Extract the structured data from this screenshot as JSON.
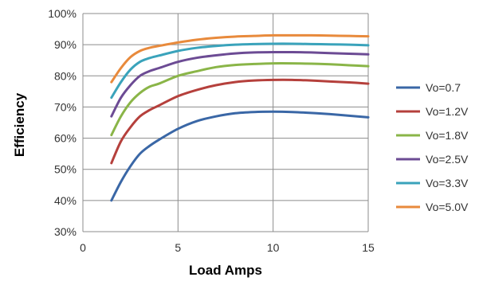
{
  "chart_data": {
    "type": "line",
    "title": "",
    "xlabel": "Load Amps",
    "ylabel": "Efficiency",
    "xlim": [
      0,
      15
    ],
    "ylim": [
      30,
      100
    ],
    "x_ticks": [
      0,
      5,
      10,
      15
    ],
    "y_ticks": [
      30,
      40,
      50,
      60,
      70,
      80,
      90,
      100
    ],
    "y_tick_labels": [
      "30%",
      "40%",
      "50%",
      "60%",
      "70%",
      "80%",
      "90%",
      "100%"
    ],
    "grid": true,
    "legend_position": "right",
    "x": [
      1.5,
      2,
      2.5,
      3,
      3.5,
      4,
      5,
      6,
      7,
      8,
      9,
      10,
      11,
      12,
      13,
      14,
      15
    ],
    "series": [
      {
        "name": "Vo=0.7",
        "color": "#3a67a6",
        "values": [
          40,
          46,
          51,
          55,
          57.5,
          59.5,
          63,
          65.5,
          67,
          68,
          68.4,
          68.5,
          68.4,
          68.1,
          67.7,
          67.2,
          66.7
        ]
      },
      {
        "name": "Vo=1.2V",
        "color": "#b5403c",
        "values": [
          52,
          59,
          63.5,
          67,
          69,
          70.5,
          73.5,
          75.5,
          77,
          78,
          78.5,
          78.7,
          78.7,
          78.5,
          78.2,
          77.9,
          77.5
        ]
      },
      {
        "name": "Vo=1.8V",
        "color": "#8ab548",
        "values": [
          61,
          67,
          71.5,
          74.5,
          76.5,
          77.5,
          80,
          81.5,
          82.8,
          83.5,
          83.8,
          84,
          84,
          83.9,
          83.7,
          83.4,
          83.1
        ]
      },
      {
        "name": "Vo=2.5V",
        "color": "#6c4b94",
        "values": [
          67,
          73,
          77,
          80,
          81.5,
          82.5,
          84.5,
          85.8,
          86.6,
          87.2,
          87.5,
          87.6,
          87.6,
          87.5,
          87.3,
          87.1,
          86.9
        ]
      },
      {
        "name": "Vo=3.3V",
        "color": "#3aa3bb",
        "values": [
          73,
          78,
          82,
          84.5,
          85.7,
          86.5,
          88,
          89,
          89.6,
          90,
          90.2,
          90.3,
          90.3,
          90.2,
          90.1,
          90,
          89.8
        ]
      },
      {
        "name": "Vo=5.0V",
        "color": "#e88a3c",
        "values": [
          78,
          82.5,
          86,
          88,
          89,
          89.6,
          90.7,
          91.6,
          92.2,
          92.6,
          92.8,
          93,
          93,
          93,
          92.9,
          92.8,
          92.7
        ]
      }
    ]
  }
}
